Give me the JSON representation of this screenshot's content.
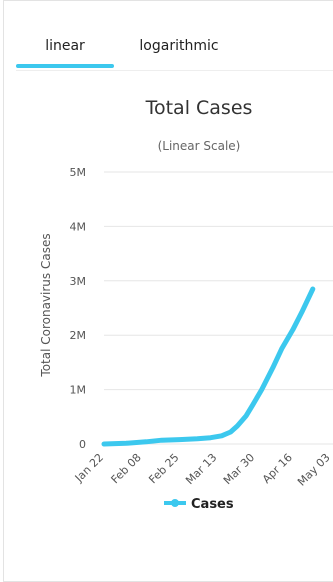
{
  "tabs": {
    "linear": "linear",
    "logarithmic": "logarithmic"
  },
  "accent_color": "#3cc8ee",
  "chart_data": {
    "type": "line",
    "title": "Total Cases",
    "subtitle": "(Linear Scale)",
    "ylabel": "Total Coronavirus Cases",
    "xlabel": "",
    "x_ticks": [
      "Jan 22",
      "Feb 08",
      "Feb 25",
      "Mar 13",
      "Mar 30",
      "Apr 16",
      "May 03"
    ],
    "y_ticks": [
      "0",
      "1M",
      "2M",
      "3M",
      "4M",
      "5M"
    ],
    "ylim": [
      0,
      5000000
    ],
    "grid": true,
    "legend_position": "bottom",
    "series": [
      {
        "name": "Cases",
        "color": "#3cc8ee",
        "points": [
          [
            "2020-01-22",
            0
          ],
          [
            "2020-02-01",
            12000
          ],
          [
            "2020-02-10",
            40000
          ],
          [
            "2020-02-17",
            70000
          ],
          [
            "2020-02-25",
            80000
          ],
          [
            "2020-03-04",
            95000
          ],
          [
            "2020-03-10",
            115000
          ],
          [
            "2020-03-15",
            150000
          ],
          [
            "2020-03-19",
            220000
          ],
          [
            "2020-03-22",
            330000
          ],
          [
            "2020-03-26",
            520000
          ],
          [
            "2020-03-29",
            720000
          ],
          [
            "2020-04-02",
            1000000
          ],
          [
            "2020-04-07",
            1400000
          ],
          [
            "2020-04-11",
            1750000
          ],
          [
            "2020-04-16",
            2100000
          ],
          [
            "2020-04-20",
            2420000
          ],
          [
            "2020-04-25",
            2850000
          ]
        ]
      }
    ]
  }
}
